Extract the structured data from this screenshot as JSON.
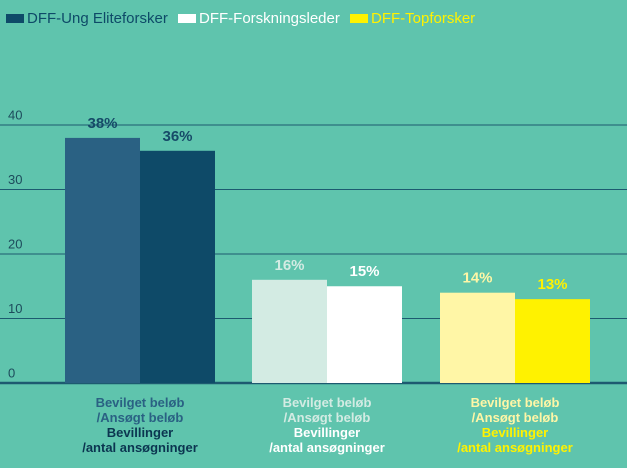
{
  "chart_data": {
    "type": "grouped_bar",
    "categories": [
      "Bevilget beløb\n/Ansøgt beløb",
      "Bevillinger\n/antal ansøgninger"
    ],
    "series": [
      {
        "name": "DFF-Ung Eliteforsker",
        "color": "#0e4a68",
        "colors": [
          "#2a6183",
          "#0e4a68"
        ],
        "values": [
          38,
          36
        ],
        "value_labels": [
          "38%",
          "36%"
        ]
      },
      {
        "name": "DFF-Forskningsleder",
        "color": "#ffffff",
        "colors": [
          "#d3ebe3",
          "#ffffff"
        ],
        "values": [
          16,
          15
        ],
        "value_labels": [
          "16%",
          "15%"
        ]
      },
      {
        "name": "DFF-Topforsker",
        "color": "#fff200",
        "colors": [
          "#fff6a6",
          "#fff200"
        ],
        "values": [
          14,
          13
        ],
        "value_labels": [
          "14%",
          "13%"
        ]
      }
    ],
    "ylim": [
      0,
      40
    ],
    "yticks": [
      0,
      10,
      20,
      30,
      40
    ],
    "grid": true,
    "legend": "top-left"
  }
}
